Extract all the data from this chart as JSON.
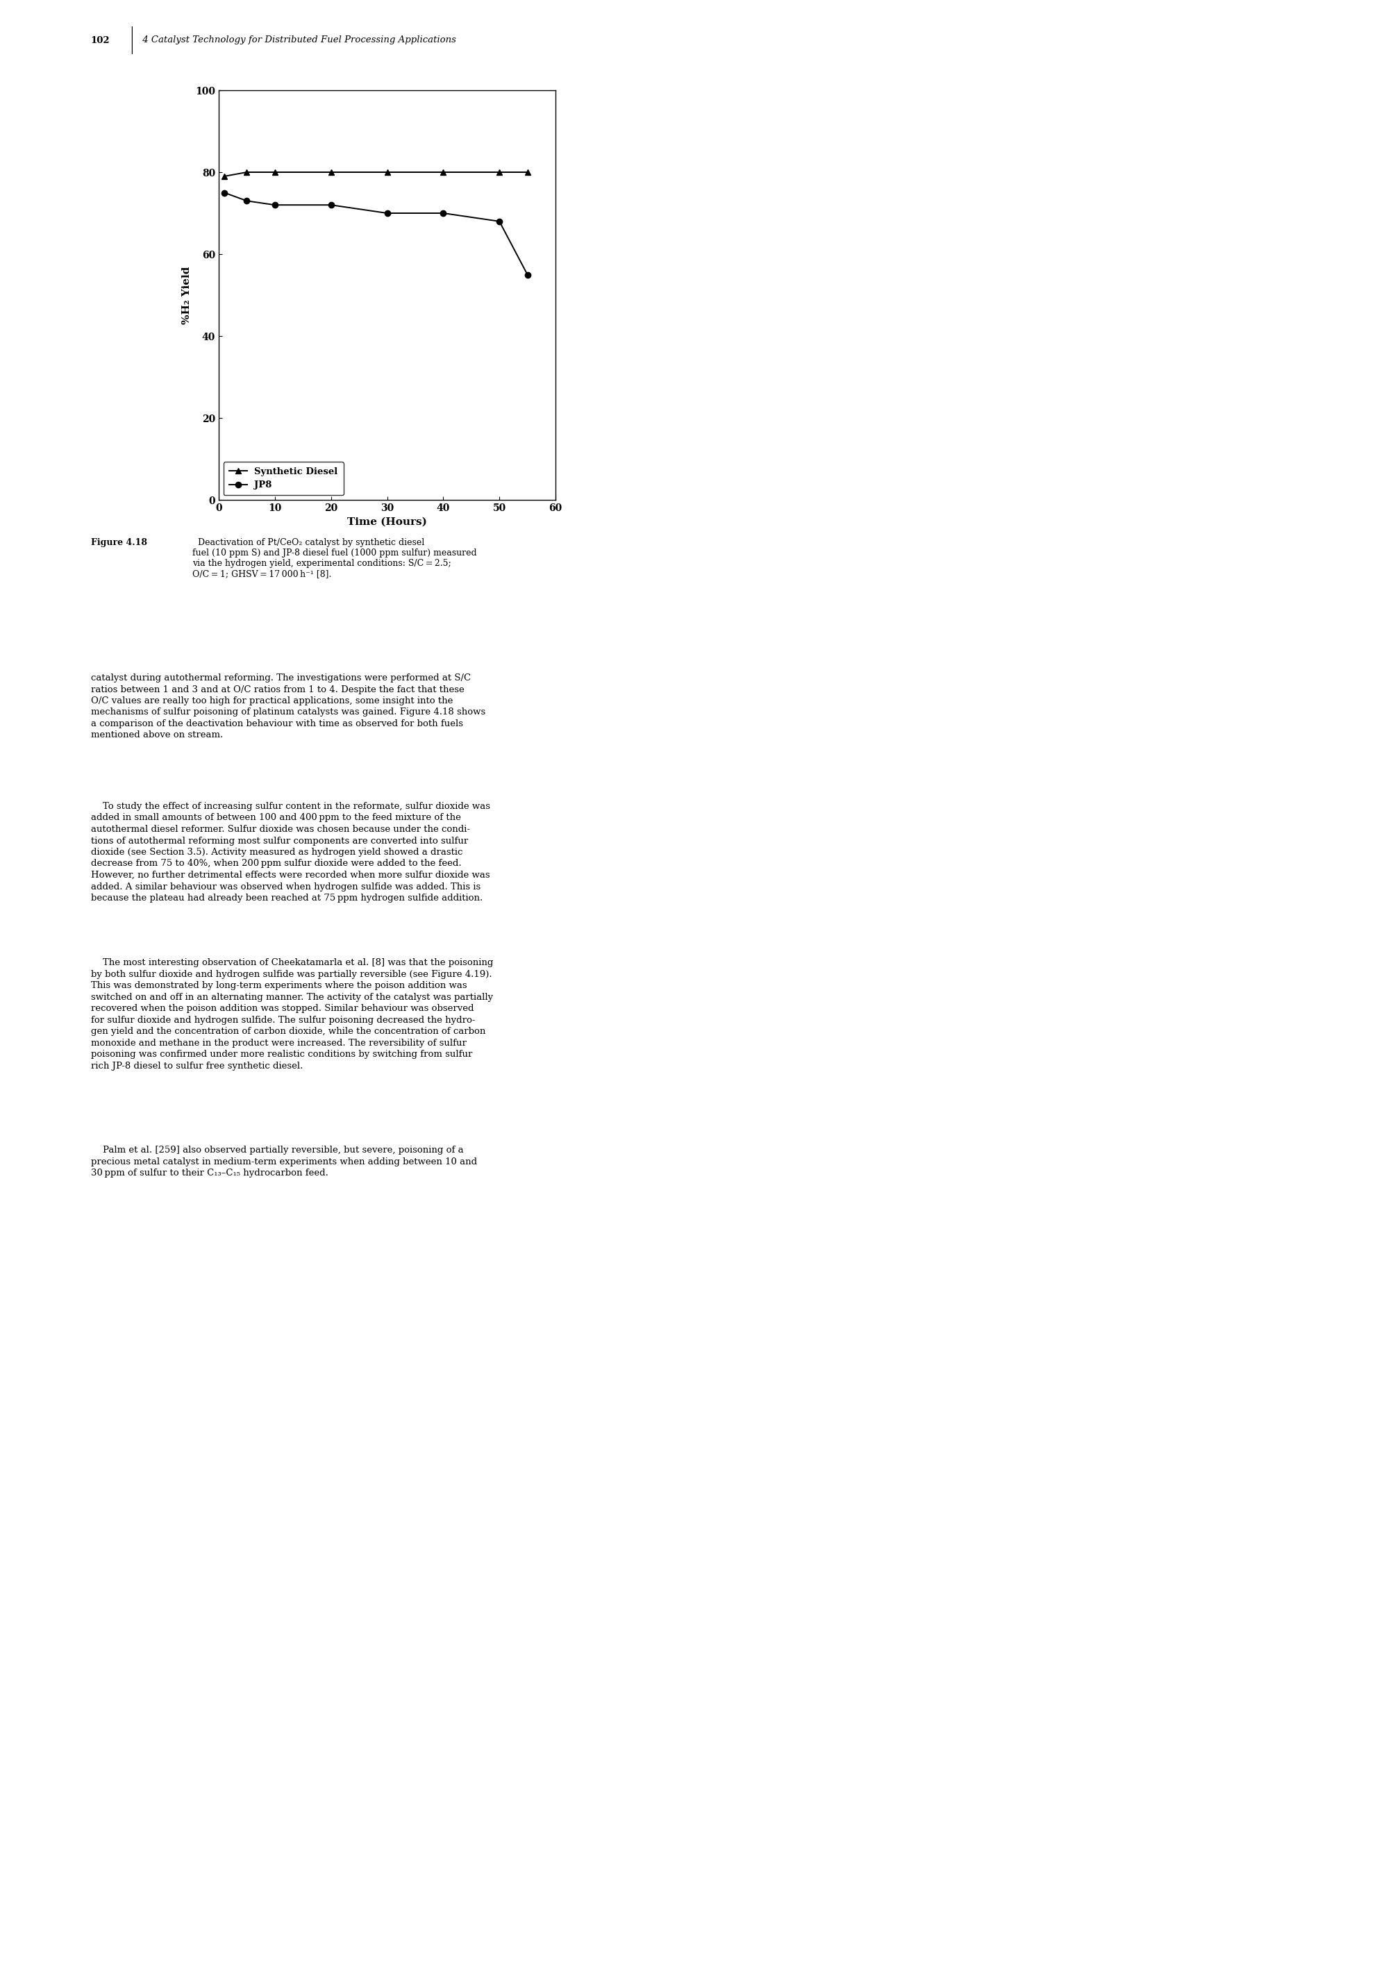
{
  "synthetic_diesel_x": [
    1,
    5,
    10,
    20,
    30,
    40,
    50,
    55
  ],
  "synthetic_diesel_y": [
    79,
    80,
    80,
    80,
    80,
    80,
    80,
    80
  ],
  "jp8_x": [
    1,
    5,
    10,
    20,
    30,
    40,
    50,
    55
  ],
  "jp8_y": [
    75,
    73,
    72,
    72,
    70,
    70,
    68,
    55
  ],
  "xlabel": "Time (Hours)",
  "ylabel": "%H₂ Yield",
  "xlim": [
    0,
    60
  ],
  "ylim": [
    0,
    100
  ],
  "xticks": [
    0,
    10,
    20,
    30,
    40,
    50,
    60
  ],
  "yticks": [
    0,
    20,
    40,
    60,
    80,
    100
  ],
  "legend_labels": [
    "Synthetic Diesel",
    "JP8"
  ],
  "line_color": "#000000",
  "marker_synthetic": "^",
  "marker_jp8": "o",
  "figure_caption_bold": "Figure 4.18",
  "figure_caption_rest": "  Deactivation of Pt/CeO₂ catalyst by synthetic diesel\nfuel (10 ppm S) and JP-8 diesel fuel (1000 ppm sulfur) measured\nvia the hydrogen yield, experimental conditions: S/C = 2.5;\nO/C = 1; GHSV = 17 000 h⁻¹ [8].",
  "page_number": "102",
  "header_italic": " 4 Catalyst Technology for Distributed Fuel Processing Applications",
  "background_color": "#ffffff",
  "font_size_axis_labels": 11,
  "font_size_ticks": 10,
  "font_size_legend": 9.5,
  "font_size_caption": 9,
  "font_size_body": 9.5,
  "font_size_header": 9.5,
  "line_width": 1.4,
  "marker_size": 6,
  "body_paragraphs": [
    "catalyst during autothermal reforming. The investigations were performed at S/C\nratios between 1 and 3 and at O/C ratios from 1 to 4. Despite the fact that these\nO/C values are really too high for practical applications, some insight into the\nmechanisms of sulfur poisoning of platinum catalysts was gained. Figure 4.18 shows\na comparison of the deactivation behaviour with time as observed for both fuels\nmentioned above on stream.",
    "    To study the effect of increasing sulfur content in the reformate, sulfur dioxide was\nadded in small amounts of between 100 and 400 ppm to the feed mixture of the\nautothermal diesel reformer. Sulfur dioxide was chosen because under the condi-\ntions of autothermal reforming most sulfur components are converted into sulfur\ndioxide (see Section 3.5). Activity measured as hydrogen yield showed a drastic\ndecrease from 75 to 40%, when 200 ppm sulfur dioxide were added to the feed.\nHowever, no further detrimental effects were recorded when more sulfur dioxide was\nadded. A similar behaviour was observed when hydrogen sulfide was added. This is\nbecause the plateau had already been reached at 75 ppm hydrogen sulfide addition.",
    "    The most interesting observation of Cheekatamarla et al. [8] was that the poisoning\nby both sulfur dioxide and hydrogen sulfide was partially reversible (see Figure 4.19).\nThis was demonstrated by long-term experiments where the poison addition was\nswitched on and off in an alternating manner. The activity of the catalyst was partially\nrecovered when the poison addition was stopped. Similar behaviour was observed\nfor sulfur dioxide and hydrogen sulfide. The sulfur poisoning decreased the hydro-\ngen yield and the concentration of carbon dioxide, while the concentration of carbon\nmonoxide and methane in the product were increased. The reversibility of sulfur\npoisoning was confirmed under more realistic conditions by switching from sulfur\nrich JP-8 diesel to sulfur free synthetic diesel.",
    "    Palm et al. [259] also observed partially reversible, but severe, poisoning of a\nprecious metal catalyst in medium-term experiments when adding between 10 and\n30 ppm of sulfur to their C₁₃–C₁₅ hydrocarbon feed."
  ]
}
